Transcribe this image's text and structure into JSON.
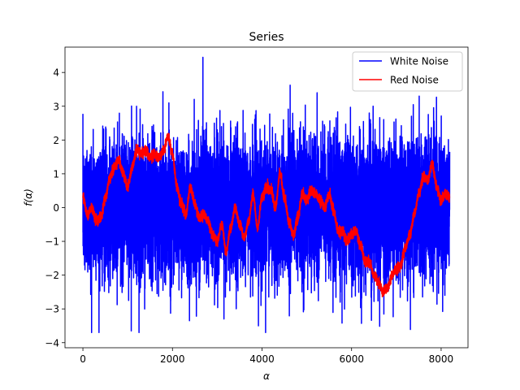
{
  "chart_data": {
    "type": "line",
    "title": "Series",
    "xlabel": "α",
    "ylabel": "f(α)",
    "xlim": [
      -400,
      8600
    ],
    "ylim": [
      -4.15,
      4.75
    ],
    "xticks": [
      0,
      2000,
      4000,
      6000,
      8000
    ],
    "yticks": [
      -4,
      -3,
      -2,
      -1,
      0,
      1,
      2,
      3,
      4
    ],
    "grid": false,
    "legend_position": "top-right",
    "n_points": 8192,
    "series": [
      {
        "name": "White Noise",
        "color": "#0000ff",
        "summary": {
          "mean": 0.0,
          "std": 1.0,
          "min": -3.7,
          "max": 4.45
        },
        "notable_points": [
          {
            "x": 2680,
            "y": 4.45
          },
          {
            "x": 4080,
            "y": -3.7
          },
          {
            "x": 1080,
            "y": -3.65
          },
          {
            "x": 3920,
            "y": -3.5
          },
          {
            "x": 5230,
            "y": 3.4
          },
          {
            "x": 2380,
            "y": -3.35
          },
          {
            "x": 7510,
            "y": 3.3
          },
          {
            "x": 3150,
            "y": -3.3
          },
          {
            "x": 1920,
            "y": 3.1
          }
        ]
      },
      {
        "name": "Red Noise",
        "color": "#ff0000",
        "x": [
          0,
          100,
          200,
          300,
          400,
          500,
          600,
          700,
          800,
          900,
          1000,
          1100,
          1200,
          1300,
          1400,
          1500,
          1600,
          1700,
          1800,
          1900,
          2000,
          2100,
          2200,
          2300,
          2400,
          2500,
          2600,
          2700,
          2800,
          2900,
          3000,
          3100,
          3200,
          3300,
          3400,
          3500,
          3600,
          3700,
          3800,
          3900,
          4000,
          4100,
          4200,
          4300,
          4400,
          4500,
          4600,
          4700,
          4800,
          4900,
          5000,
          5100,
          5200,
          5300,
          5400,
          5500,
          5600,
          5700,
          5800,
          5900,
          6000,
          6100,
          6200,
          6300,
          6400,
          6500,
          6600,
          6700,
          6800,
          6900,
          7000,
          7100,
          7200,
          7300,
          7400,
          7500,
          7600,
          7700,
          7800,
          7900,
          8000,
          8100,
          8192
        ],
        "y": [
          0.3,
          -0.2,
          0.0,
          -0.4,
          -0.3,
          0.3,
          0.9,
          1.2,
          1.4,
          1.0,
          0.6,
          1.2,
          1.7,
          1.6,
          1.7,
          1.5,
          1.6,
          1.5,
          1.7,
          2.1,
          1.6,
          0.6,
          0.1,
          -0.2,
          0.6,
          0.1,
          -0.3,
          -0.2,
          -0.4,
          -0.8,
          -1.0,
          -0.5,
          -1.3,
          -0.6,
          0.0,
          -0.5,
          -0.9,
          -0.4,
          0.4,
          -0.6,
          0.3,
          0.6,
          0.5,
          0.0,
          1.0,
          0.3,
          -0.4,
          -0.8,
          -0.3,
          0.4,
          0.2,
          0.5,
          0.4,
          0.2,
          0.0,
          0.4,
          -0.1,
          -0.7,
          -0.7,
          -1.0,
          -0.8,
          -0.7,
          -1.1,
          -1.6,
          -1.6,
          -2.0,
          -2.2,
          -2.5,
          -2.4,
          -2.0,
          -1.8,
          -1.7,
          -1.2,
          -0.8,
          -0.2,
          0.4,
          0.9,
          0.8,
          1.3,
          0.6,
          0.2,
          0.4,
          0.3
        ]
      }
    ]
  }
}
